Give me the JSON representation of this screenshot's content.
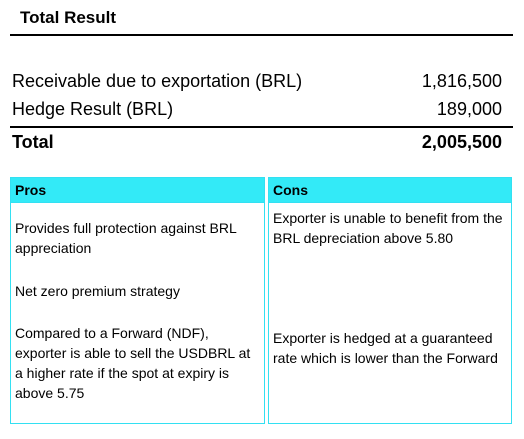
{
  "title": "Total Result",
  "results": {
    "receivable": {
      "label": "Receivable due to exportation (BRL)",
      "value": "1,816,500"
    },
    "hedge": {
      "label": "Hedge Result (BRL)",
      "value": "189,000"
    },
    "total": {
      "label": "Total",
      "value": "2,005,500"
    }
  },
  "pros": {
    "header": "Pros",
    "items": [
      "Provides full protection against BRL appreciation",
      "Net zero premium strategy",
      "Compared to a Forward (NDF), exporter is able to sell the USDBRL at a higher rate if the spot at expiry is above 5.75"
    ]
  },
  "cons": {
    "header": "Cons",
    "items": [
      "Exporter is unable to benefit from the BRL depreciation above 5.80",
      "Exporter is hedged at a guaranteed rate which is lower than the Forward"
    ]
  },
  "colors": {
    "header_fill": "#33eaf7",
    "border": "#33e0f2"
  }
}
